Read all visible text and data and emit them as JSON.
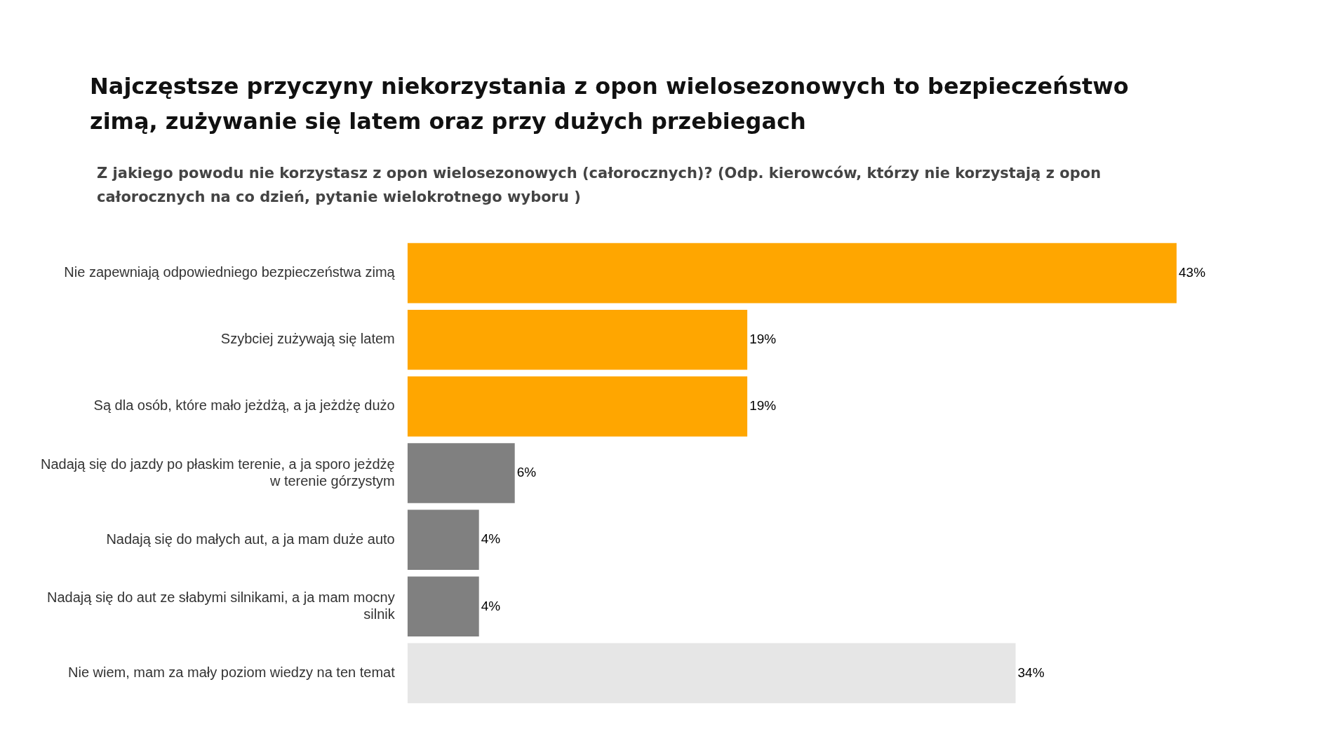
{
  "chart_data": {
    "type": "bar",
    "orientation": "horizontal",
    "title": "Najczęstsze przyczyny niekorzystania z opon wielosezonowych to bezpieczeństwo zimą, zużywanie się latem oraz przy dużych przebiegach",
    "subtitle": "Z jakiego powodu nie korzystasz z opon wielosezonowych (całorocznych)? (Odp. kierowców, którzy nie korzystają z opon całorocznych na co dzień, pytanie wielokrotnego wyboru )",
    "categories": [
      "Nie zapewniają odpowiedniego bezpieczeństwa zimą",
      "Szybciej zużywają się latem",
      "Są dla osób, które mało jeżdżą, a ja jeżdżę dużo",
      "Nadają się do jazdy po płaskim terenie, a ja sporo jeżdżę w terenie górzystym",
      "Nadają się do małych aut, a ja mam duże auto",
      "Nadają się do aut ze słabymi silnikami, a ja mam mocny silnik",
      "Nie wiem, mam za mały poziom wiedzy na ten temat"
    ],
    "values": [
      43,
      19,
      19,
      6,
      4,
      4,
      34
    ],
    "colors": [
      "#ffa600",
      "#ffa600",
      "#ffa600",
      "#808080",
      "#808080",
      "#808080",
      "#e6e6e6"
    ],
    "value_labels": [
      "43%",
      "19%",
      "19%",
      "6%",
      "4%",
      "4%",
      "34%"
    ],
    "legend": false
  }
}
